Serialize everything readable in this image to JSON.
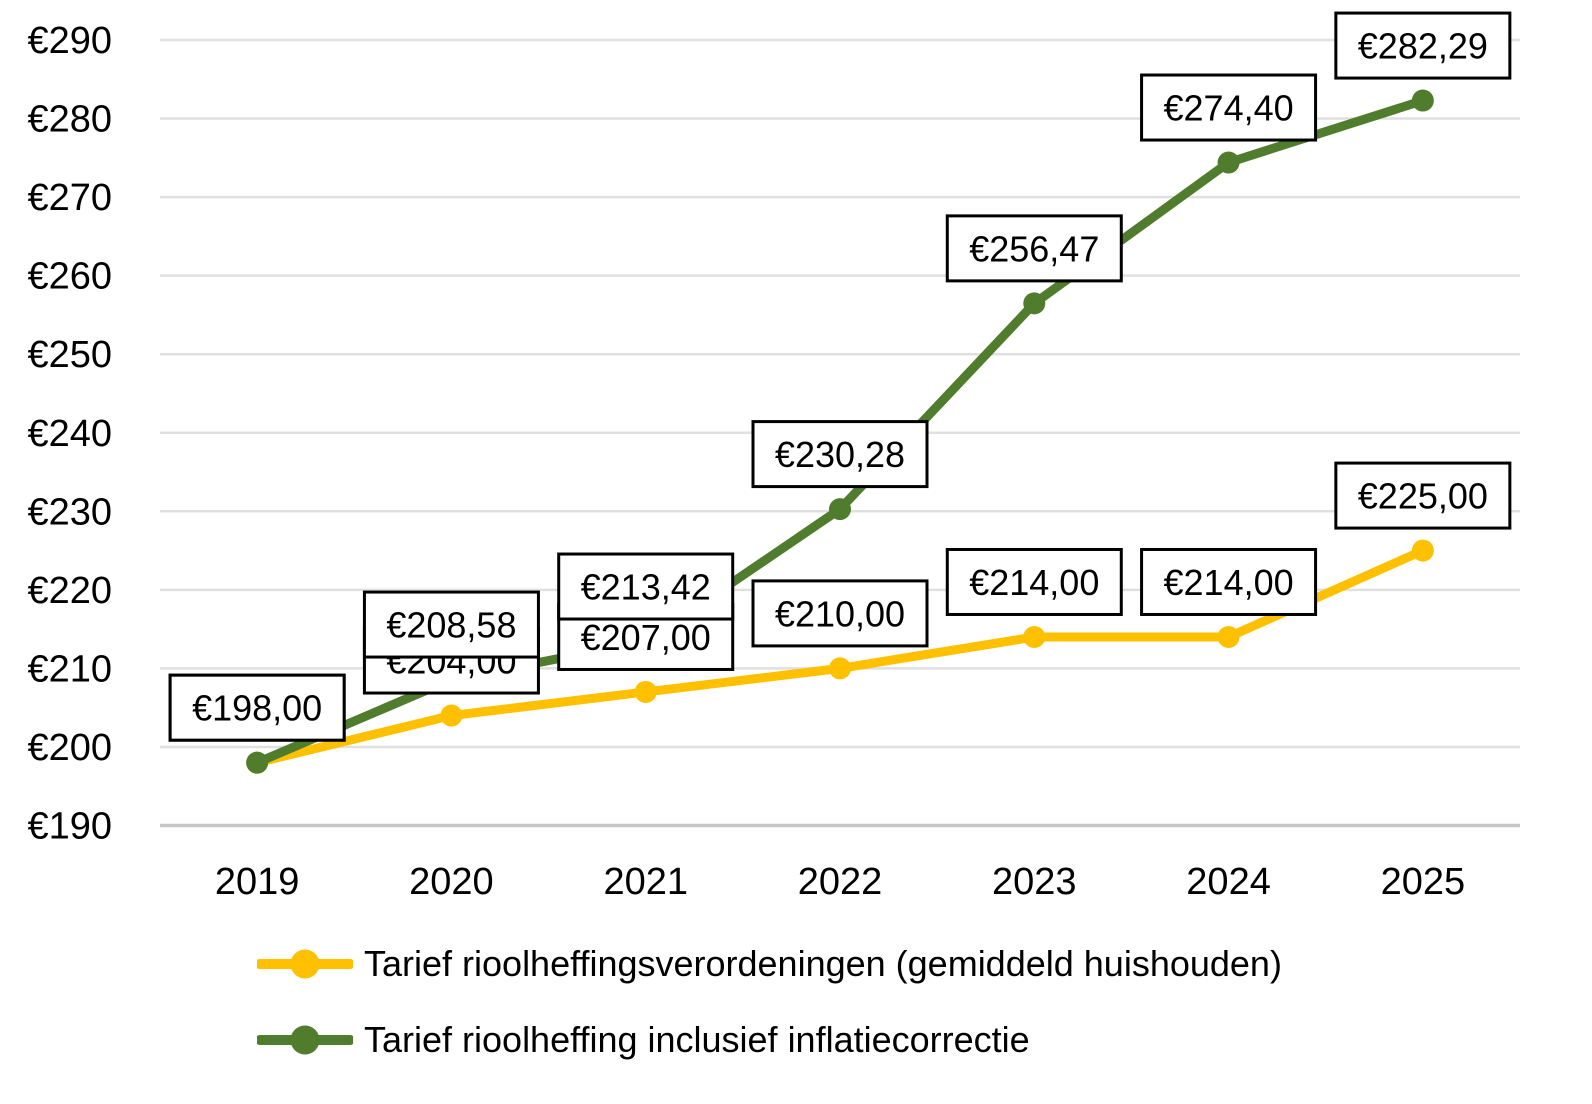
{
  "chart_data": {
    "type": "line",
    "title": "",
    "categories": [
      "2019",
      "2020",
      "2021",
      "2022",
      "2023",
      "2024",
      "2025"
    ],
    "series": [
      {
        "name": "Tarief rioolheffingsverordeningen (gemiddeld huishouden)",
        "color": "#FFC000",
        "values": [
          198.0,
          204.0,
          207.0,
          210.0,
          214.0,
          214.0,
          225.0
        ],
        "labels": [
          "€198,00",
          "€204,00",
          "€207,00",
          "€210,00",
          "€214,00",
          "€214,00",
          "€225,00"
        ]
      },
      {
        "name": "Tarief rioolheffing inclusief inflatiecorrectie",
        "color": "#507C2D",
        "values": [
          198.0,
          208.58,
          213.42,
          230.28,
          256.47,
          274.4,
          282.29
        ],
        "labels": [
          "€198,00",
          "€208,58",
          "€213,42",
          "€230,28",
          "€256,47",
          "€274,40",
          "€282,29"
        ]
      }
    ],
    "ylim": [
      190,
      290
    ],
    "ytick_step": 10,
    "yticks": [
      {
        "value": 290,
        "label": "€290"
      },
      {
        "value": 280,
        "label": "€280"
      },
      {
        "value": 270,
        "label": "€270"
      },
      {
        "value": 260,
        "label": "€260"
      },
      {
        "value": 250,
        "label": "€250"
      },
      {
        "value": 240,
        "label": "€240"
      },
      {
        "value": 230,
        "label": "€230"
      },
      {
        "value": 220,
        "label": "€220"
      },
      {
        "value": 210,
        "label": "€210"
      },
      {
        "value": 200,
        "label": "€200"
      },
      {
        "value": 190,
        "label": "€190"
      }
    ],
    "grid": true,
    "grid_color": "#E0E0E0",
    "axis_line_color": "#C6C6C6",
    "text_color": "#000000",
    "label_box_fill": "#FFFFFF",
    "label_box_border": "#000000",
    "legend_position": "bottom-left"
  }
}
